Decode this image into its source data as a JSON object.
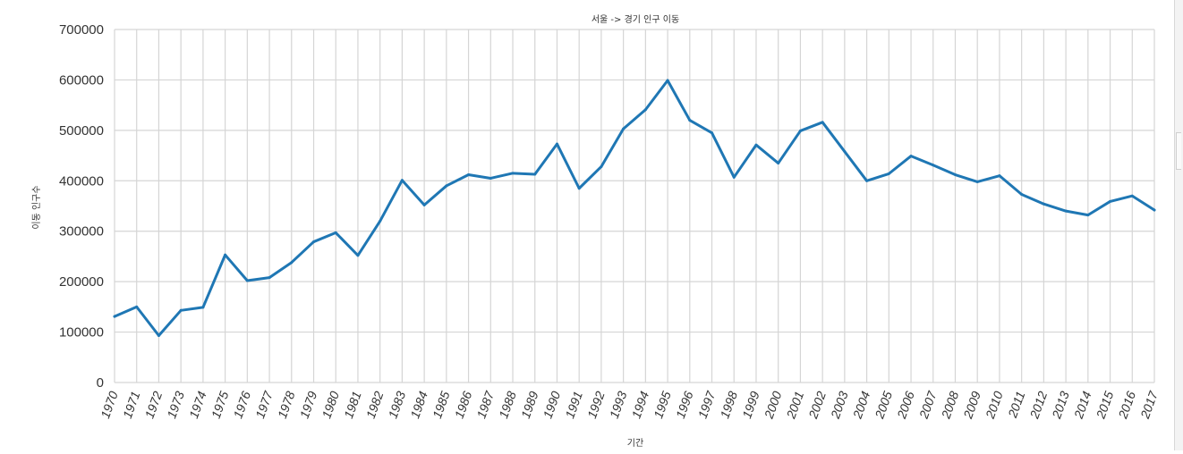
{
  "chart_data": {
    "type": "line",
    "title": "서울 -> 경기 인구 이동",
    "xlabel": "기간",
    "ylabel": "이동 인구수",
    "ylim": [
      0,
      700000
    ],
    "yticks": [
      "0",
      "100000",
      "200000",
      "300000",
      "400000",
      "500000",
      "600000",
      "700000"
    ],
    "grid": true,
    "x": [
      "1970",
      "1971",
      "1972",
      "1973",
      "1974",
      "1975",
      "1976",
      "1977",
      "1978",
      "1979",
      "1980",
      "1981",
      "1982",
      "1983",
      "1984",
      "1985",
      "1986",
      "1987",
      "1988",
      "1989",
      "1990",
      "1991",
      "1992",
      "1993",
      "1994",
      "1995",
      "1996",
      "1997",
      "1998",
      "1999",
      "2000",
      "2001",
      "2002",
      "2003",
      "2004",
      "2005",
      "2006",
      "2007",
      "2008",
      "2009",
      "2010",
      "2011",
      "2012",
      "2013",
      "2014",
      "2015",
      "2016",
      "2017"
    ],
    "series": [
      {
        "values": [
          131000,
          150000,
          93000,
          143000,
          149000,
          253000,
          202000,
          208000,
          238000,
          279000,
          297000,
          252000,
          320000,
          401000,
          352000,
          390000,
          412000,
          405000,
          415000,
          413000,
          473000,
          385000,
          428000,
          503000,
          541000,
          599000,
          520000,
          495000,
          407000,
          471000,
          435000,
          499000,
          516000,
          458000,
          400000,
          414000,
          449000,
          431000,
          412000,
          398000,
          410000,
          373000,
          354000,
          340000,
          332000,
          359000,
          370000,
          342000
        ],
        "color": "#1f77b4"
      }
    ]
  }
}
